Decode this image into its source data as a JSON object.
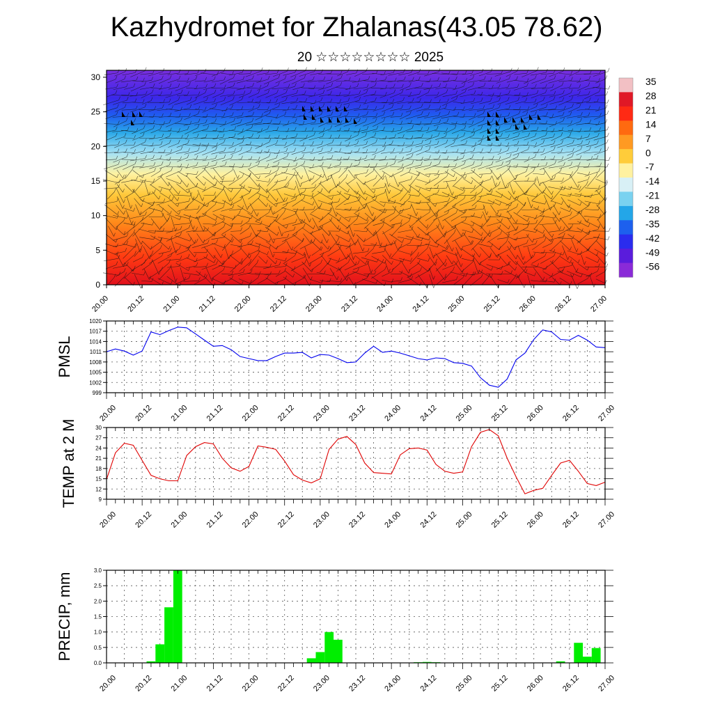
{
  "header": {
    "title": "Kazhydromet for Zhalanas(43.05 78.62)",
    "subtitle": "20 ☆☆☆☆☆☆☆☆ 2025"
  },
  "chart_data": [
    {
      "type": "heatmap",
      "name": "temperature-wind-profile",
      "x_ticks": [
        "20.00",
        "20.12",
        "21.00",
        "21.12",
        "22.00",
        "22.12",
        "23.00",
        "23.12",
        "24.00",
        "24.12",
        "25.00",
        "25.12",
        "26.00",
        "26.12",
        "27.00"
      ],
      "ylim": [
        0,
        31
      ],
      "y_ticks": [
        0,
        5,
        10,
        15,
        20,
        25,
        30
      ],
      "colorbar_labels": [
        "35",
        "28",
        "21",
        "14",
        "7",
        "0",
        "-7",
        "-14",
        "-21",
        "-28",
        "-35",
        "-42",
        "-49",
        "-56"
      ],
      "colorbar_colors": [
        "#f2c0c4",
        "#e01826",
        "#ff2a14",
        "#ff6a10",
        "#ff9a22",
        "#ffcc3a",
        "#fff1a0",
        "#d8f0f6",
        "#7ad2f0",
        "#23a6e8",
        "#1d60ee",
        "#2a2cee",
        "#5a1cdc",
        "#8a2ad8"
      ],
      "layer_colors": [
        "#e2101c",
        "#ff3a12",
        "#ff8a1a",
        "#ffc83a",
        "#fff2a0",
        "#a6e2f4",
        "#2aa8e8",
        "#1f5cf0",
        "#3b27ea",
        "#7a2fe0"
      ],
      "layer_heights": [
        0,
        4,
        9,
        13,
        16,
        19,
        22,
        24.5,
        27,
        31
      ]
    },
    {
      "type": "line",
      "name": "pmsl",
      "ylabel": "PMSL",
      "ylim": [
        999,
        1020
      ],
      "y_ticks": [
        999,
        1002,
        1005,
        1008,
        1011,
        1014,
        1017,
        1020
      ],
      "x_ticks": [
        "20.00",
        "20.12",
        "21.00",
        "21.12",
        "22.00",
        "22.12",
        "23.00",
        "23.12",
        "24.00",
        "24.12",
        "25.00",
        "25.12",
        "26.00",
        "26.12",
        "27.00"
      ],
      "color": "#0000ee",
      "values": [
        1011.0,
        1011.8,
        1011.2,
        1010.0,
        1011.2,
        1016.8,
        1016.0,
        1017.2,
        1018.2,
        1018.0,
        1016.2,
        1014.4,
        1012.6,
        1012.8,
        1011.6,
        1009.6,
        1009.0,
        1008.4,
        1008.4,
        1009.6,
        1010.6,
        1010.6,
        1010.8,
        1009.2,
        1010.2,
        1010.0,
        1009.0,
        1007.8,
        1008.0,
        1010.6,
        1012.6,
        1010.8,
        1011.2,
        1010.6,
        1009.8,
        1009.0,
        1008.6,
        1009.2,
        1009.0,
        1007.8,
        1007.6,
        1006.8,
        1003.4,
        1001.2,
        1000.6,
        1003.0,
        1008.6,
        1010.6,
        1014.6,
        1017.4,
        1016.8,
        1014.6,
        1014.4,
        1015.8,
        1014.4,
        1012.4,
        1012.2
      ]
    },
    {
      "type": "line",
      "name": "temp-2m",
      "ylabel": "TEMP at 2 M",
      "ylim": [
        9,
        30
      ],
      "y_ticks": [
        9,
        12,
        15,
        18,
        21,
        24,
        27,
        30
      ],
      "x_ticks": [
        "20.00",
        "20.12",
        "21.00",
        "21.12",
        "22.00",
        "22.12",
        "23.00",
        "23.12",
        "24.00",
        "24.12",
        "25.00",
        "25.12",
        "26.00",
        "26.12",
        "27.00"
      ],
      "color": "#e00000",
      "values": [
        14.8,
        22.6,
        25.4,
        24.8,
        20.4,
        16.0,
        15.0,
        14.4,
        14.4,
        21.8,
        24.4,
        25.6,
        25.2,
        21.0,
        18.2,
        17.2,
        18.6,
        24.6,
        24.2,
        23.6,
        20.2,
        16.2,
        14.6,
        13.8,
        15.0,
        23.6,
        26.6,
        27.4,
        25.0,
        19.6,
        16.8,
        16.6,
        16.4,
        22.0,
        23.8,
        24.0,
        23.4,
        19.2,
        17.2,
        16.6,
        17.0,
        24.4,
        28.6,
        29.4,
        27.6,
        21.0,
        15.6,
        10.6,
        11.6,
        12.2,
        16.0,
        19.6,
        20.4,
        17.2,
        13.6,
        13.0,
        14.0
      ]
    },
    {
      "type": "bar",
      "name": "precip",
      "ylabel": "PRECIP, mm",
      "ylim": [
        0,
        3.0
      ],
      "y_ticks": [
        0.0,
        0.5,
        1.0,
        1.5,
        2.0,
        2.5,
        3.0
      ],
      "x_ticks": [
        "20.00",
        "20.12",
        "21.00",
        "21.12",
        "22.00",
        "22.12",
        "23.00",
        "23.12",
        "24.00",
        "24.12",
        "25.00",
        "25.12",
        "26.00",
        "26.12",
        "27.00"
      ],
      "color": "#00ee00",
      "bars": [
        {
          "x": 20.625,
          "v": 0.05
        },
        {
          "x": 20.75,
          "v": 0.6
        },
        {
          "x": 20.875,
          "v": 1.8
        },
        {
          "x": 21.0,
          "v": 3.0
        },
        {
          "x": 22.875,
          "v": 0.15
        },
        {
          "x": 23.0,
          "v": 0.35
        },
        {
          "x": 23.125,
          "v": 1.0
        },
        {
          "x": 23.25,
          "v": 0.75
        },
        {
          "x": 24.375,
          "v": 0.02
        },
        {
          "x": 24.5,
          "v": 0.03
        },
        {
          "x": 24.625,
          "v": 0.02
        },
        {
          "x": 26.375,
          "v": 0.05
        },
        {
          "x": 26.625,
          "v": 0.65
        },
        {
          "x": 26.75,
          "v": 0.2
        },
        {
          "x": 26.875,
          "v": 0.48
        }
      ]
    }
  ]
}
